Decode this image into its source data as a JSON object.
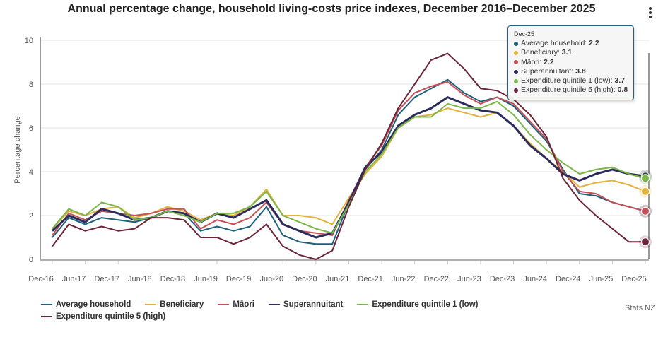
{
  "chart_data": {
    "type": "line",
    "title": "Annual percentage change, household living-costs price indexes, December 2016–December 2025",
    "xlabel": "",
    "ylabel": "Percentage change",
    "ylim": [
      0,
      10
    ],
    "yticks": [
      "0",
      "2",
      "4",
      "6",
      "8",
      "10"
    ],
    "grid": true,
    "legend_position": "bottom",
    "x": [
      "Dec-16",
      "Mar-17",
      "Jun-17",
      "Sep-17",
      "Dec-17",
      "Mar-18",
      "Jun-18",
      "Sep-18",
      "Dec-18",
      "Mar-19",
      "Jun-19",
      "Sep-19",
      "Dec-19",
      "Mar-20",
      "Jun-20",
      "Sep-20",
      "Dec-20",
      "Mar-21",
      "Jun-21",
      "Sep-21",
      "Dec-21",
      "Mar-22",
      "Jun-22",
      "Sep-22",
      "Dec-22",
      "Mar-23",
      "Jun-23",
      "Sep-23",
      "Dec-23",
      "Mar-24",
      "Jun-24",
      "Sep-24",
      "Dec-24",
      "Mar-25",
      "Jun-25",
      "Sep-25",
      "Dec-25"
    ],
    "xtick_labels": [
      "Dec-16",
      "Jun-17",
      "Dec-17",
      "Jun-18",
      "Dec-18",
      "Jun-19",
      "Dec-19",
      "Jun-20",
      "Dec-20",
      "Jun-21",
      "Dec-21",
      "Jun-22",
      "Dec-22",
      "Jun-23",
      "Dec-23",
      "Jun-24",
      "Dec-24",
      "Jun-25",
      "Dec-25"
    ],
    "series": [
      {
        "name": "Average household",
        "color": "#1f5f7a",
        "values": [
          1.0,
          1.9,
          1.6,
          1.9,
          1.8,
          1.7,
          1.9,
          2.2,
          2.1,
          1.3,
          1.5,
          1.3,
          1.5,
          2.4,
          1.1,
          0.8,
          0.7,
          0.7,
          2.6,
          4.1,
          5.0,
          6.6,
          7.4,
          7.8,
          8.2,
          7.6,
          7.2,
          7.4,
          7.0,
          6.2,
          5.4,
          4.1,
          3.0,
          2.9,
          2.6,
          2.4,
          2.2
        ]
      },
      {
        "name": "Beneficiary",
        "color": "#e3b23c",
        "values": [
          1.4,
          2.2,
          2.0,
          2.3,
          2.4,
          1.9,
          2.1,
          2.4,
          2.2,
          1.8,
          2.1,
          2.0,
          2.4,
          3.2,
          2.0,
          2.0,
          1.9,
          1.6,
          2.8,
          3.9,
          4.7,
          6.0,
          6.5,
          6.6,
          6.9,
          6.7,
          6.5,
          6.7,
          6.1,
          5.3,
          4.6,
          4.0,
          3.3,
          3.5,
          3.6,
          3.4,
          3.1
        ]
      },
      {
        "name": "Māori",
        "color": "#c65058",
        "values": [
          1.1,
          2.1,
          1.8,
          2.2,
          2.1,
          2.0,
          2.1,
          2.3,
          2.3,
          1.4,
          1.8,
          1.6,
          1.9,
          2.6,
          1.6,
          1.3,
          1.2,
          1.1,
          2.7,
          4.2,
          5.2,
          6.8,
          7.6,
          7.9,
          8.1,
          7.5,
          7.1,
          7.4,
          7.1,
          6.3,
          5.5,
          4.0,
          3.1,
          3.0,
          2.6,
          2.4,
          2.2
        ]
      },
      {
        "name": "Superannuitant",
        "color": "#2c2c5c",
        "values": [
          1.3,
          2.0,
          1.7,
          2.3,
          2.1,
          1.8,
          1.9,
          2.2,
          2.1,
          1.7,
          2.1,
          1.9,
          2.3,
          2.7,
          1.6,
          1.3,
          1.0,
          1.2,
          2.6,
          4.2,
          4.9,
          6.1,
          6.6,
          6.9,
          7.4,
          7.1,
          6.8,
          6.7,
          6.1,
          5.2,
          4.6,
          3.9,
          3.6,
          3.9,
          4.1,
          3.9,
          3.8
        ]
      },
      {
        "name": "Expenditure quintile 1 (low)",
        "color": "#7ab648",
        "values": [
          1.4,
          2.3,
          2.0,
          2.6,
          2.4,
          1.8,
          1.9,
          2.2,
          2.0,
          1.7,
          2.1,
          2.1,
          2.4,
          3.1,
          2.0,
          1.7,
          1.4,
          1.2,
          2.5,
          4.0,
          4.8,
          6.0,
          6.5,
          6.5,
          7.1,
          6.9,
          6.9,
          7.2,
          6.6,
          5.7,
          5.0,
          4.4,
          3.9,
          4.1,
          4.2,
          3.9,
          3.7
        ]
      },
      {
        "name": "Expenditure quintile 5 (high)",
        "color": "#6b2538",
        "values": [
          0.6,
          1.6,
          1.3,
          1.5,
          1.3,
          1.4,
          1.9,
          1.9,
          1.8,
          1.0,
          1.0,
          0.7,
          1.0,
          1.6,
          0.6,
          0.2,
          0.0,
          0.4,
          2.4,
          4.1,
          5.3,
          6.9,
          8.0,
          9.1,
          9.4,
          8.7,
          7.8,
          7.7,
          7.3,
          6.6,
          5.6,
          3.7,
          2.7,
          2.0,
          1.4,
          0.8,
          0.8
        ]
      }
    ],
    "tooltip": {
      "period": "Dec-25",
      "rows": [
        {
          "label": "Average household: ",
          "value": "2.2"
        },
        {
          "label": "Beneficiary: ",
          "value": "3.1"
        },
        {
          "label": "Māori: ",
          "value": "2.2"
        },
        {
          "label": "Superannuitant: ",
          "value": "3.8"
        },
        {
          "label": "Expenditure quintile 1 (low): ",
          "value": "3.7"
        },
        {
          "label": "Expenditure quintile 5 (high): ",
          "value": "0.8"
        }
      ]
    },
    "credit": "Stats NZ"
  }
}
